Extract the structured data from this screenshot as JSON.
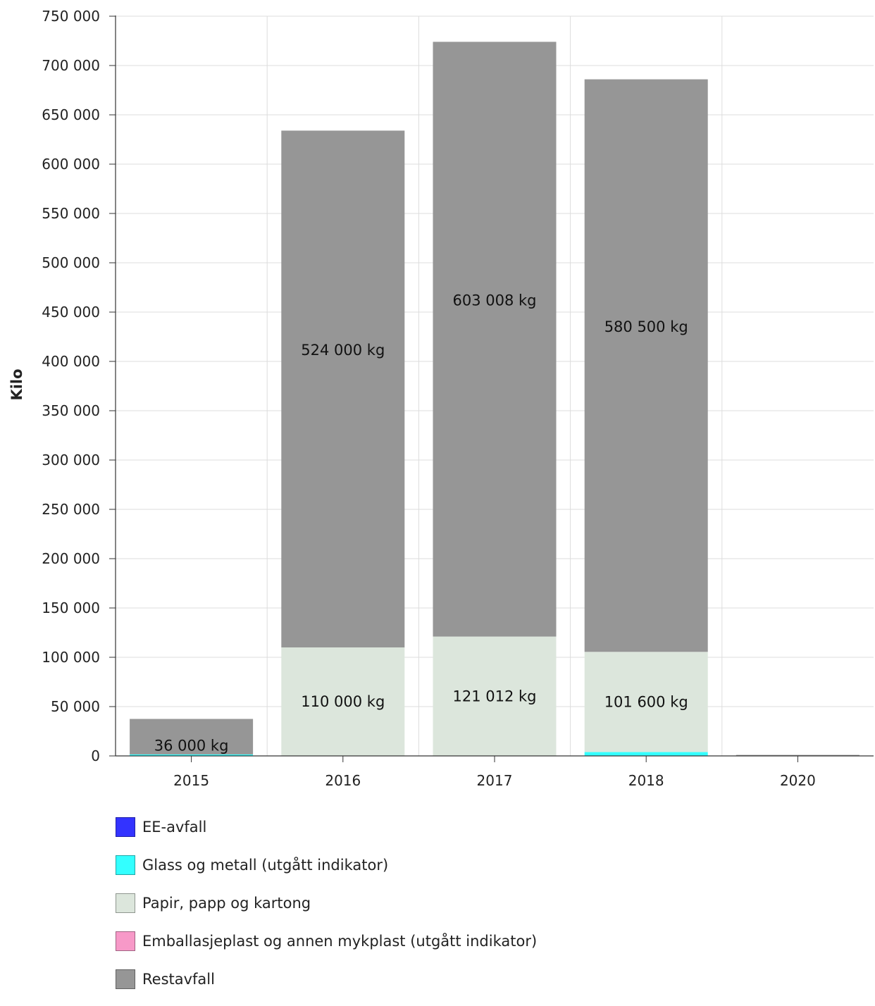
{
  "chart_data": {
    "type": "bar",
    "stacked": true,
    "ylabel": "Kilo",
    "xlabel": "",
    "ylim": [
      0,
      750000
    ],
    "yticks": [
      {
        "value": 0,
        "label": "0"
      },
      {
        "value": 50000,
        "label": "50 000"
      },
      {
        "value": 100000,
        "label": "100 000"
      },
      {
        "value": 150000,
        "label": "150 000"
      },
      {
        "value": 200000,
        "label": "200 000"
      },
      {
        "value": 250000,
        "label": "250 000"
      },
      {
        "value": 300000,
        "label": "300 000"
      },
      {
        "value": 350000,
        "label": "350 000"
      },
      {
        "value": 400000,
        "label": "400 000"
      },
      {
        "value": 450000,
        "label": "450 000"
      },
      {
        "value": 500000,
        "label": "500 000"
      },
      {
        "value": 550000,
        "label": "550 000"
      },
      {
        "value": 600000,
        "label": "600 000"
      },
      {
        "value": 650000,
        "label": "650 000"
      },
      {
        "value": 700000,
        "label": "700 000"
      },
      {
        "value": 750000,
        "label": "750 000"
      }
    ],
    "categories": [
      "2015",
      "2016",
      "2017",
      "2018",
      "2020"
    ],
    "grid": true,
    "legend_position": "bottom",
    "series": [
      {
        "name": "EE-avfall",
        "color": "#3333ff",
        "values": [
          0,
          0,
          0,
          0,
          0
        ]
      },
      {
        "name": "Glass og metall (utgått indikator)",
        "color": "#33ffff",
        "values": [
          1500,
          0,
          0,
          3900,
          0
        ]
      },
      {
        "name": "Papir, papp og kartong",
        "color": "#dce6dc",
        "values": [
          0,
          110000,
          121012,
          101600,
          0
        ]
      },
      {
        "name": "Emballasjeplast og annen mykplast (utgått indikator)",
        "color": "#f799c8",
        "values": [
          0,
          0,
          0,
          0,
          0
        ]
      },
      {
        "name": "Restavfall",
        "color": "#969696",
        "values": [
          36000,
          524000,
          603008,
          580500,
          1000
        ]
      }
    ],
    "data_labels": [
      {
        "category": "2015",
        "series": "Restavfall",
        "text": "36 000 kg"
      },
      {
        "category": "2016",
        "series": "Papir, papp og kartong",
        "text": "110 000 kg"
      },
      {
        "category": "2016",
        "series": "Restavfall",
        "text": "524 000 kg"
      },
      {
        "category": "2017",
        "series": "Papir, papp og kartong",
        "text": "121 012 kg"
      },
      {
        "category": "2017",
        "series": "Restavfall",
        "text": "603 008 kg"
      },
      {
        "category": "2018",
        "series": "Papir, papp og kartong",
        "text": "101 600 kg"
      },
      {
        "category": "2018",
        "series": "Restavfall",
        "text": "580 500 kg"
      }
    ]
  }
}
